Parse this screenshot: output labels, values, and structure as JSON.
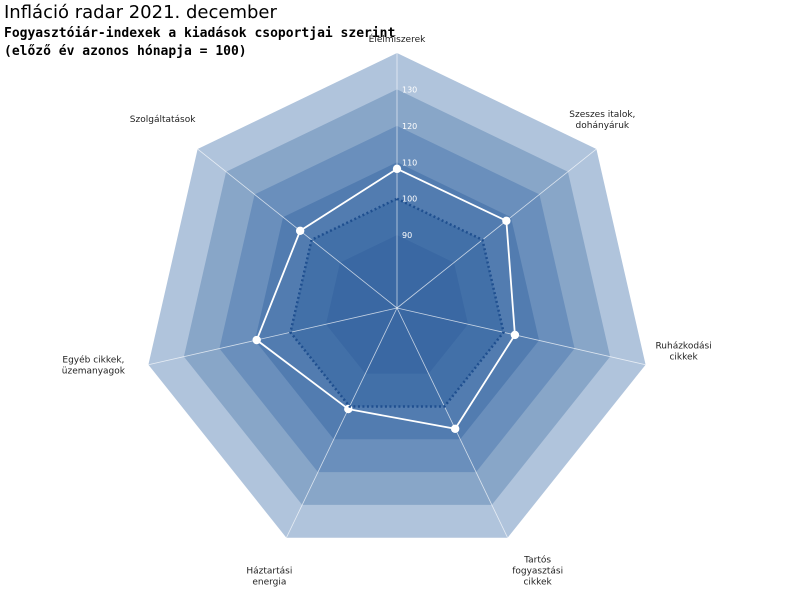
{
  "title": "Infláció radar 2021. december",
  "subtitle_line1": "Fogyasztóiár-indexek a kiadások csoportjai szerint",
  "subtitle_line2": "(előző év azonos hónapja = 100)",
  "colors": {
    "band_outer": "#b0c4dc",
    "band_2": "#88a6c8",
    "band_3": "#6a8fbc",
    "band_4": "#527cb0",
    "band_5": "#4270a8",
    "band_inner": "#3a68a3",
    "series_current": "#ffffff",
    "series_reference": "#1f4f8f"
  },
  "chart_data": {
    "type": "radar",
    "categories": [
      [
        "Élelmiszerek"
      ],
      [
        "Szeszes italok,",
        "dohányáruk"
      ],
      [
        "Ruházkodási",
        "cikkek"
      ],
      [
        "Tartós",
        "fogyasztási",
        "cikkek"
      ],
      [
        "Háztartási",
        "energia"
      ],
      [
        "Egyéb cikkek,",
        "üzemanyagok"
      ],
      [
        "Szolgáltatások"
      ]
    ],
    "radial_ticks": [
      90,
      100,
      110,
      120,
      130
    ],
    "rlim": [
      70,
      140
    ],
    "series": [
      {
        "values": [
          108.2,
          108.4,
          103.2,
          106.8,
          100.8,
          109.5,
          104.0
        ],
        "style": "solid-white-markers"
      },
      {
        "values": [
          100,
          100,
          100,
          100,
          100,
          100,
          100
        ],
        "style": "dotted"
      }
    ]
  }
}
